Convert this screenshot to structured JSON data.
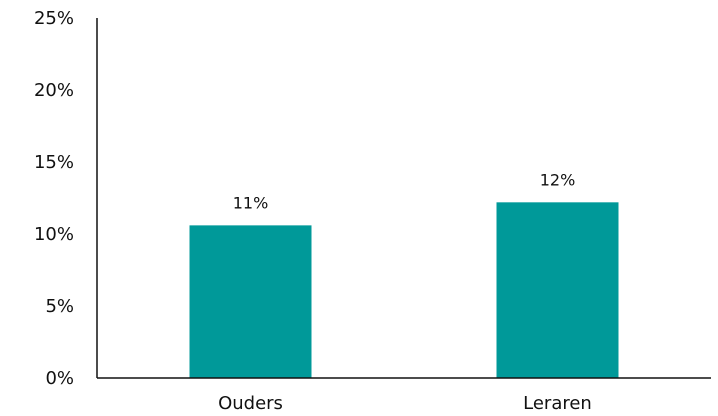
{
  "chart_data": {
    "type": "bar",
    "categories": [
      "Ouders",
      "Leraren"
    ],
    "values": [
      0.106,
      0.122
    ],
    "data_labels": [
      "11%",
      "12%"
    ],
    "y_tick_labels": [
      "0%",
      "5%",
      "10%",
      "15%",
      "20%",
      "25%"
    ],
    "ylim": [
      0,
      0.25
    ],
    "title": "",
    "xlabel": "",
    "ylabel": "",
    "grid": false,
    "legend": "none",
    "bar_color": "#009999",
    "axis_color": "#111111"
  }
}
